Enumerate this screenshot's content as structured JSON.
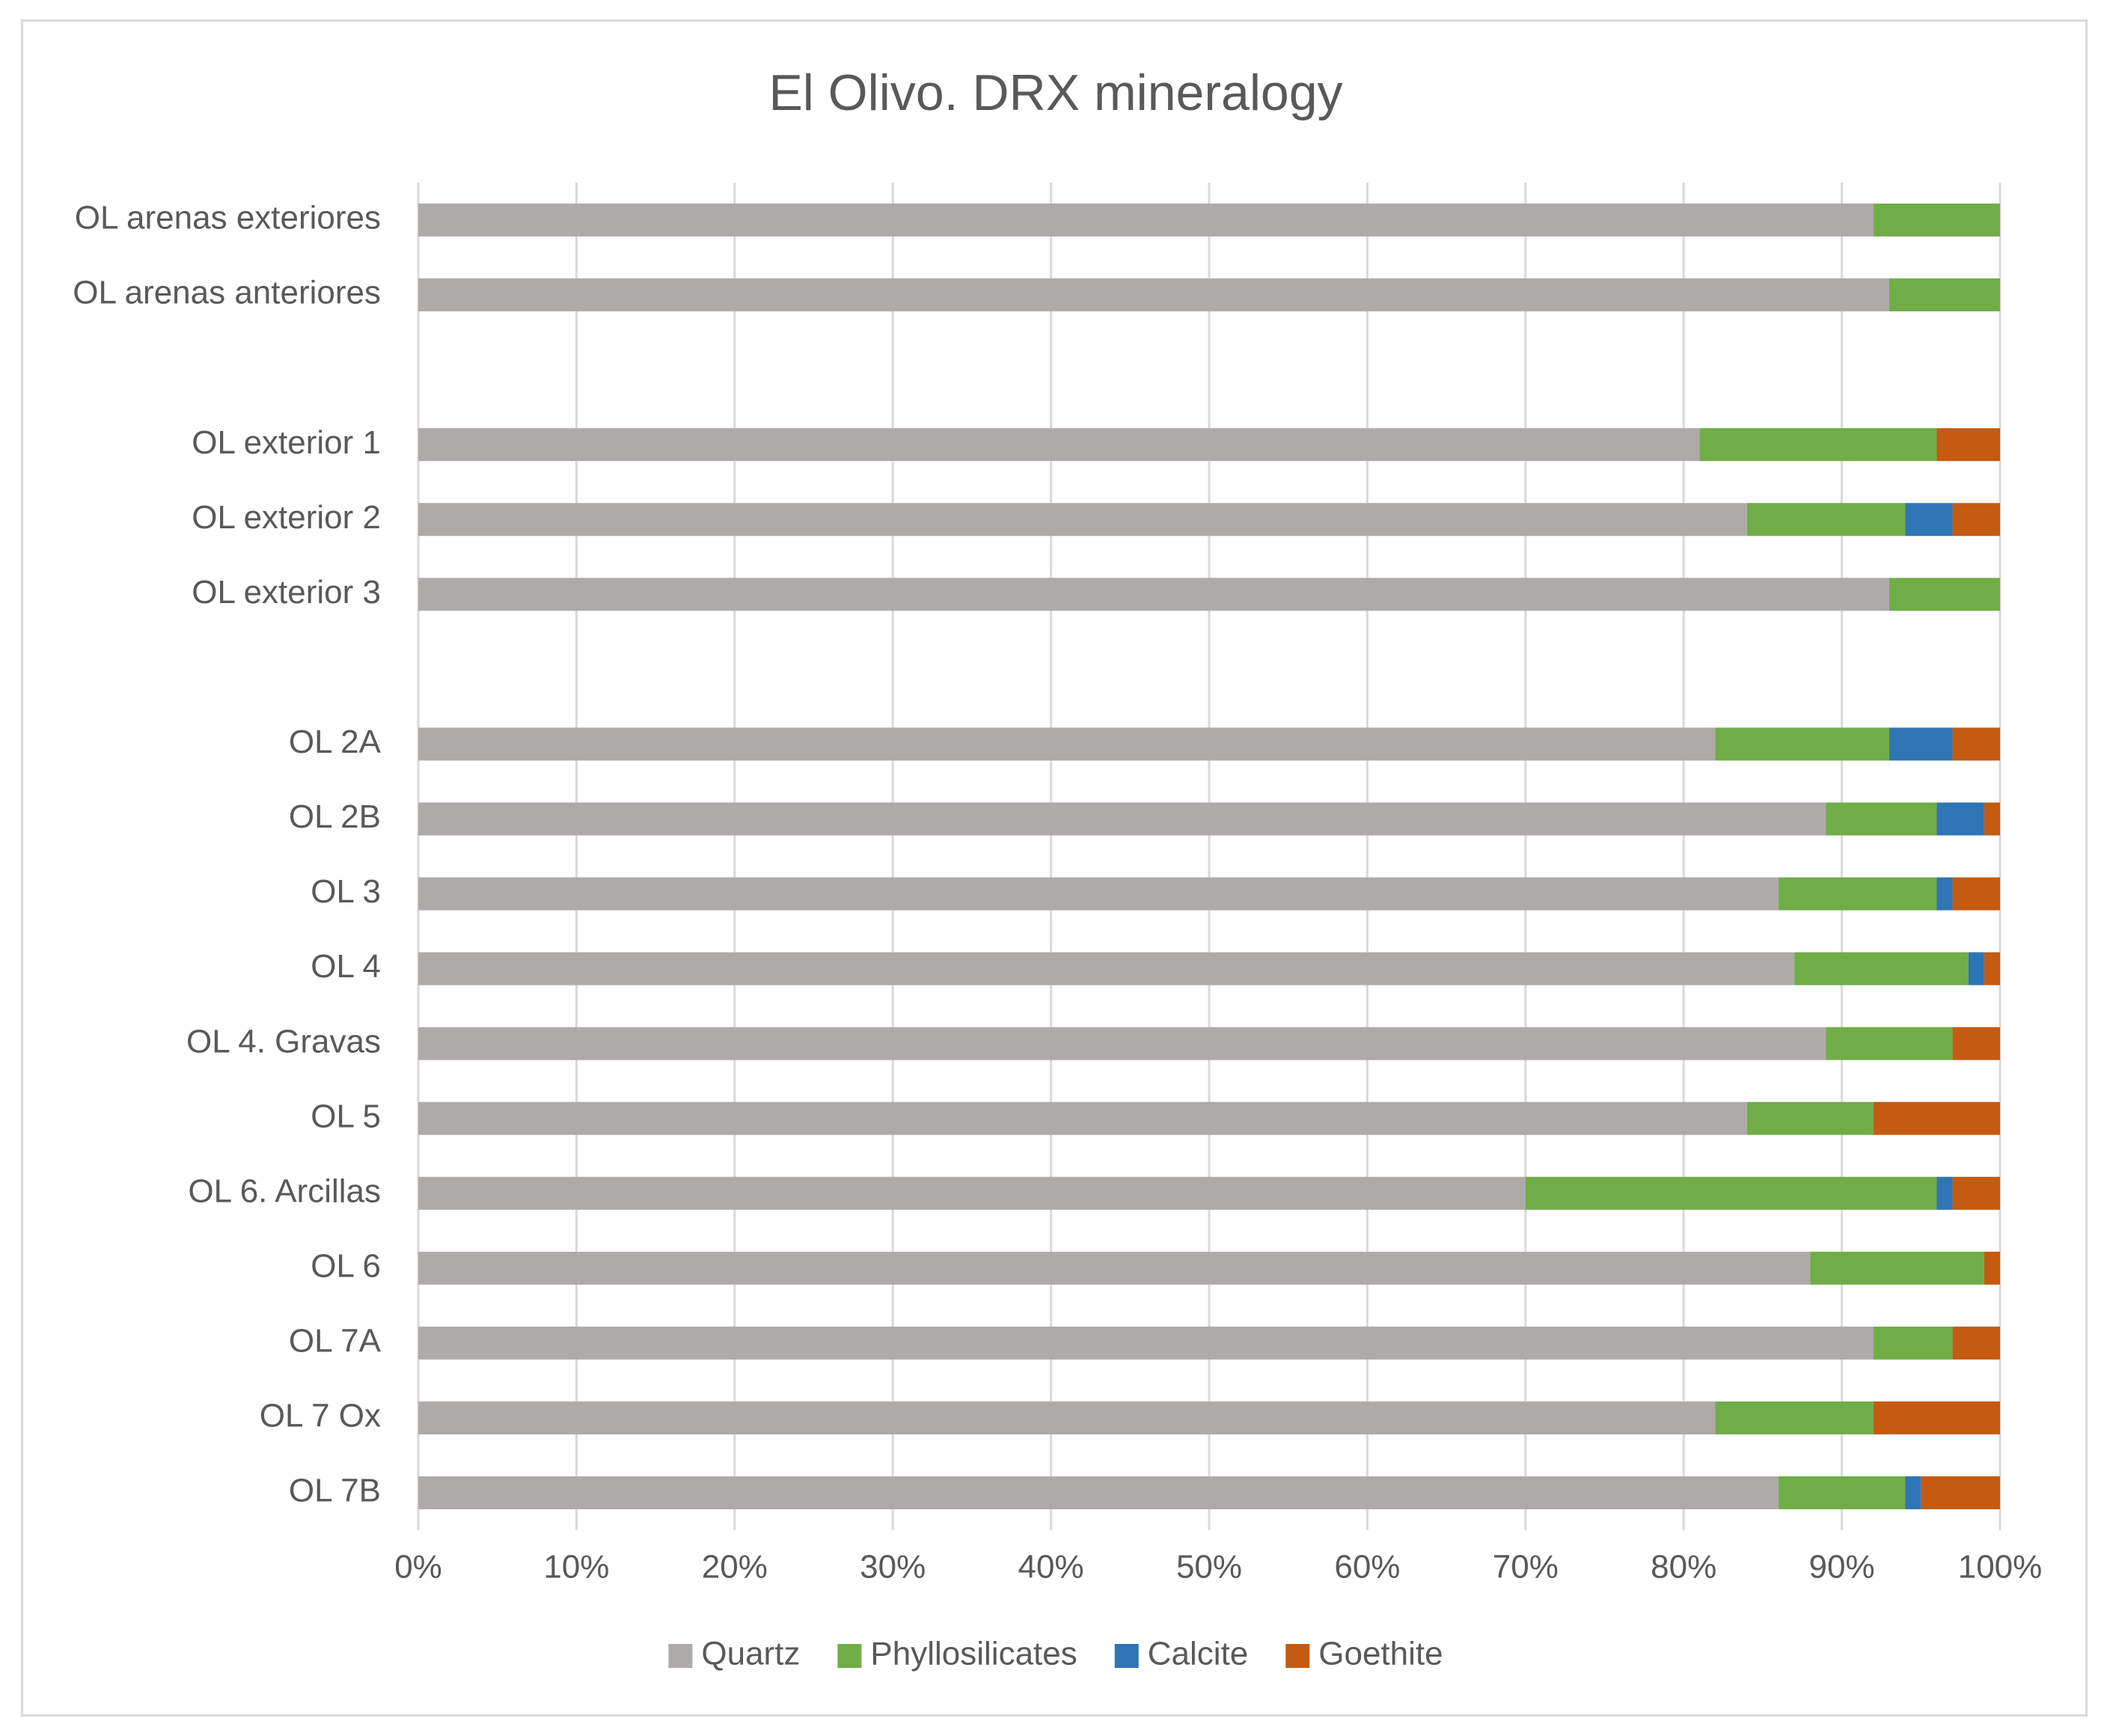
{
  "chart_data": {
    "type": "bar",
    "orientation": "horizontal",
    "stacked": "percent",
    "title": "El Olivo. DRX mineralogy",
    "xlabel": "",
    "ylabel": "",
    "xlim": [
      0,
      100
    ],
    "x_ticks": [
      "0%",
      "10%",
      "20%",
      "30%",
      "40%",
      "50%",
      "60%",
      "70%",
      "80%",
      "90%",
      "100%"
    ],
    "grid": true,
    "legend_position": "bottom",
    "categories": [
      "OL arenas exteriores",
      "OL arenas anteriores",
      "",
      "OL exterior 1",
      "OL exterior 2",
      "OL exterior 3",
      "",
      "OL 2A",
      "OL 2B",
      "OL 3",
      "OL 4",
      "OL 4. Gravas",
      "OL 5",
      "OL 6. Arcillas",
      "OL 6",
      "OL 7A",
      "OL 7 Ox",
      "OL 7B"
    ],
    "series": [
      {
        "name": "Quartz",
        "color": "#aeaaaa",
        "values": [
          92,
          93,
          0,
          81,
          84,
          93,
          0,
          82,
          89,
          86,
          87,
          89,
          84,
          70,
          88,
          92,
          82,
          86
        ]
      },
      {
        "name": "Phyllosilicates",
        "color": "#70ad47",
        "values": [
          8,
          7,
          0,
          15,
          10,
          7,
          0,
          11,
          7,
          10,
          11,
          8,
          8,
          26,
          11,
          5,
          10,
          8
        ]
      },
      {
        "name": "Calcite",
        "color": "#2e75b6",
        "values": [
          0,
          0,
          0,
          0,
          3,
          0,
          0,
          4,
          3,
          1,
          1,
          0,
          0,
          1,
          0,
          0,
          0,
          1
        ]
      },
      {
        "name": "Goethite",
        "color": "#c55a11",
        "values": [
          0,
          0,
          0,
          4,
          3,
          0,
          0,
          3,
          1,
          3,
          1,
          3,
          8,
          3,
          1,
          3,
          8,
          5
        ]
      }
    ]
  }
}
